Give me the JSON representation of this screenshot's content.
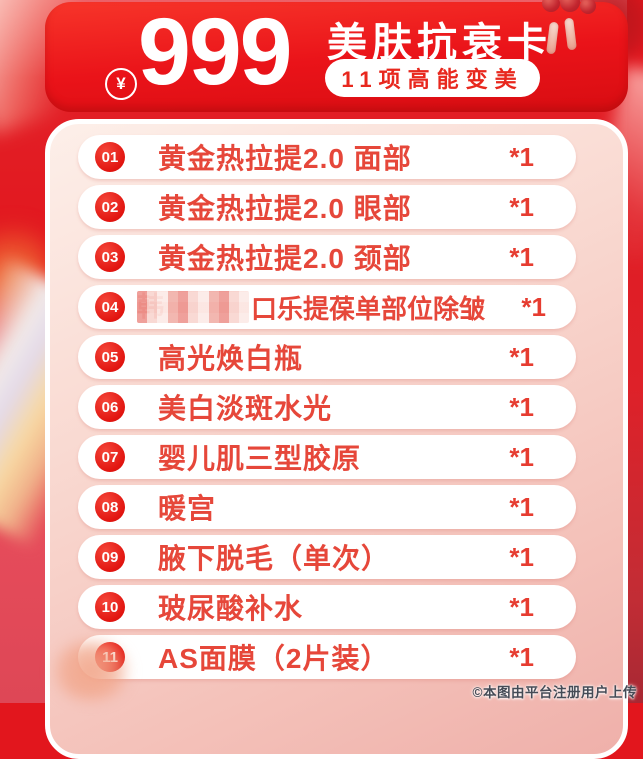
{
  "header": {
    "currency_symbol": "¥",
    "price": "999",
    "title": "美肤抗衰卡",
    "badge": "11项高能变美"
  },
  "items": [
    {
      "index": "01",
      "label": "黄金热拉提2.0 面部",
      "qty": "*1"
    },
    {
      "index": "02",
      "label": "黄金热拉提2.0 眼部",
      "qty": "*1"
    },
    {
      "index": "03",
      "label": "黄金热拉提2.0 颈部",
      "qty": "*1"
    },
    {
      "index": "04",
      "censored": true,
      "censored_prefix": "韩",
      "label": "口乐提葆单部位除皱",
      "qty": "*1"
    },
    {
      "index": "05",
      "label": "高光焕白瓶",
      "qty": "*1"
    },
    {
      "index": "06",
      "label": "美白淡斑水光",
      "qty": "*1"
    },
    {
      "index": "07",
      "label": "婴儿肌三型胶原",
      "qty": "*1"
    },
    {
      "index": "08",
      "label": "暖宫",
      "qty": "*1"
    },
    {
      "index": "09",
      "label": "腋下脱毛（单次）",
      "qty": "*1"
    },
    {
      "index": "10",
      "label": "玻尿酸补水",
      "qty": "*1"
    },
    {
      "index": "11",
      "label": "AS面膜（2片装）",
      "qty": "*1"
    }
  ],
  "watermark": "©本图由平台注册用户上传",
  "colors": {
    "header_red": "#ea1319",
    "item_text_red": "#e6473a",
    "panel_pink": "#f8d5cd",
    "row_white": "#ffffff",
    "background_red": "#e2161d"
  }
}
